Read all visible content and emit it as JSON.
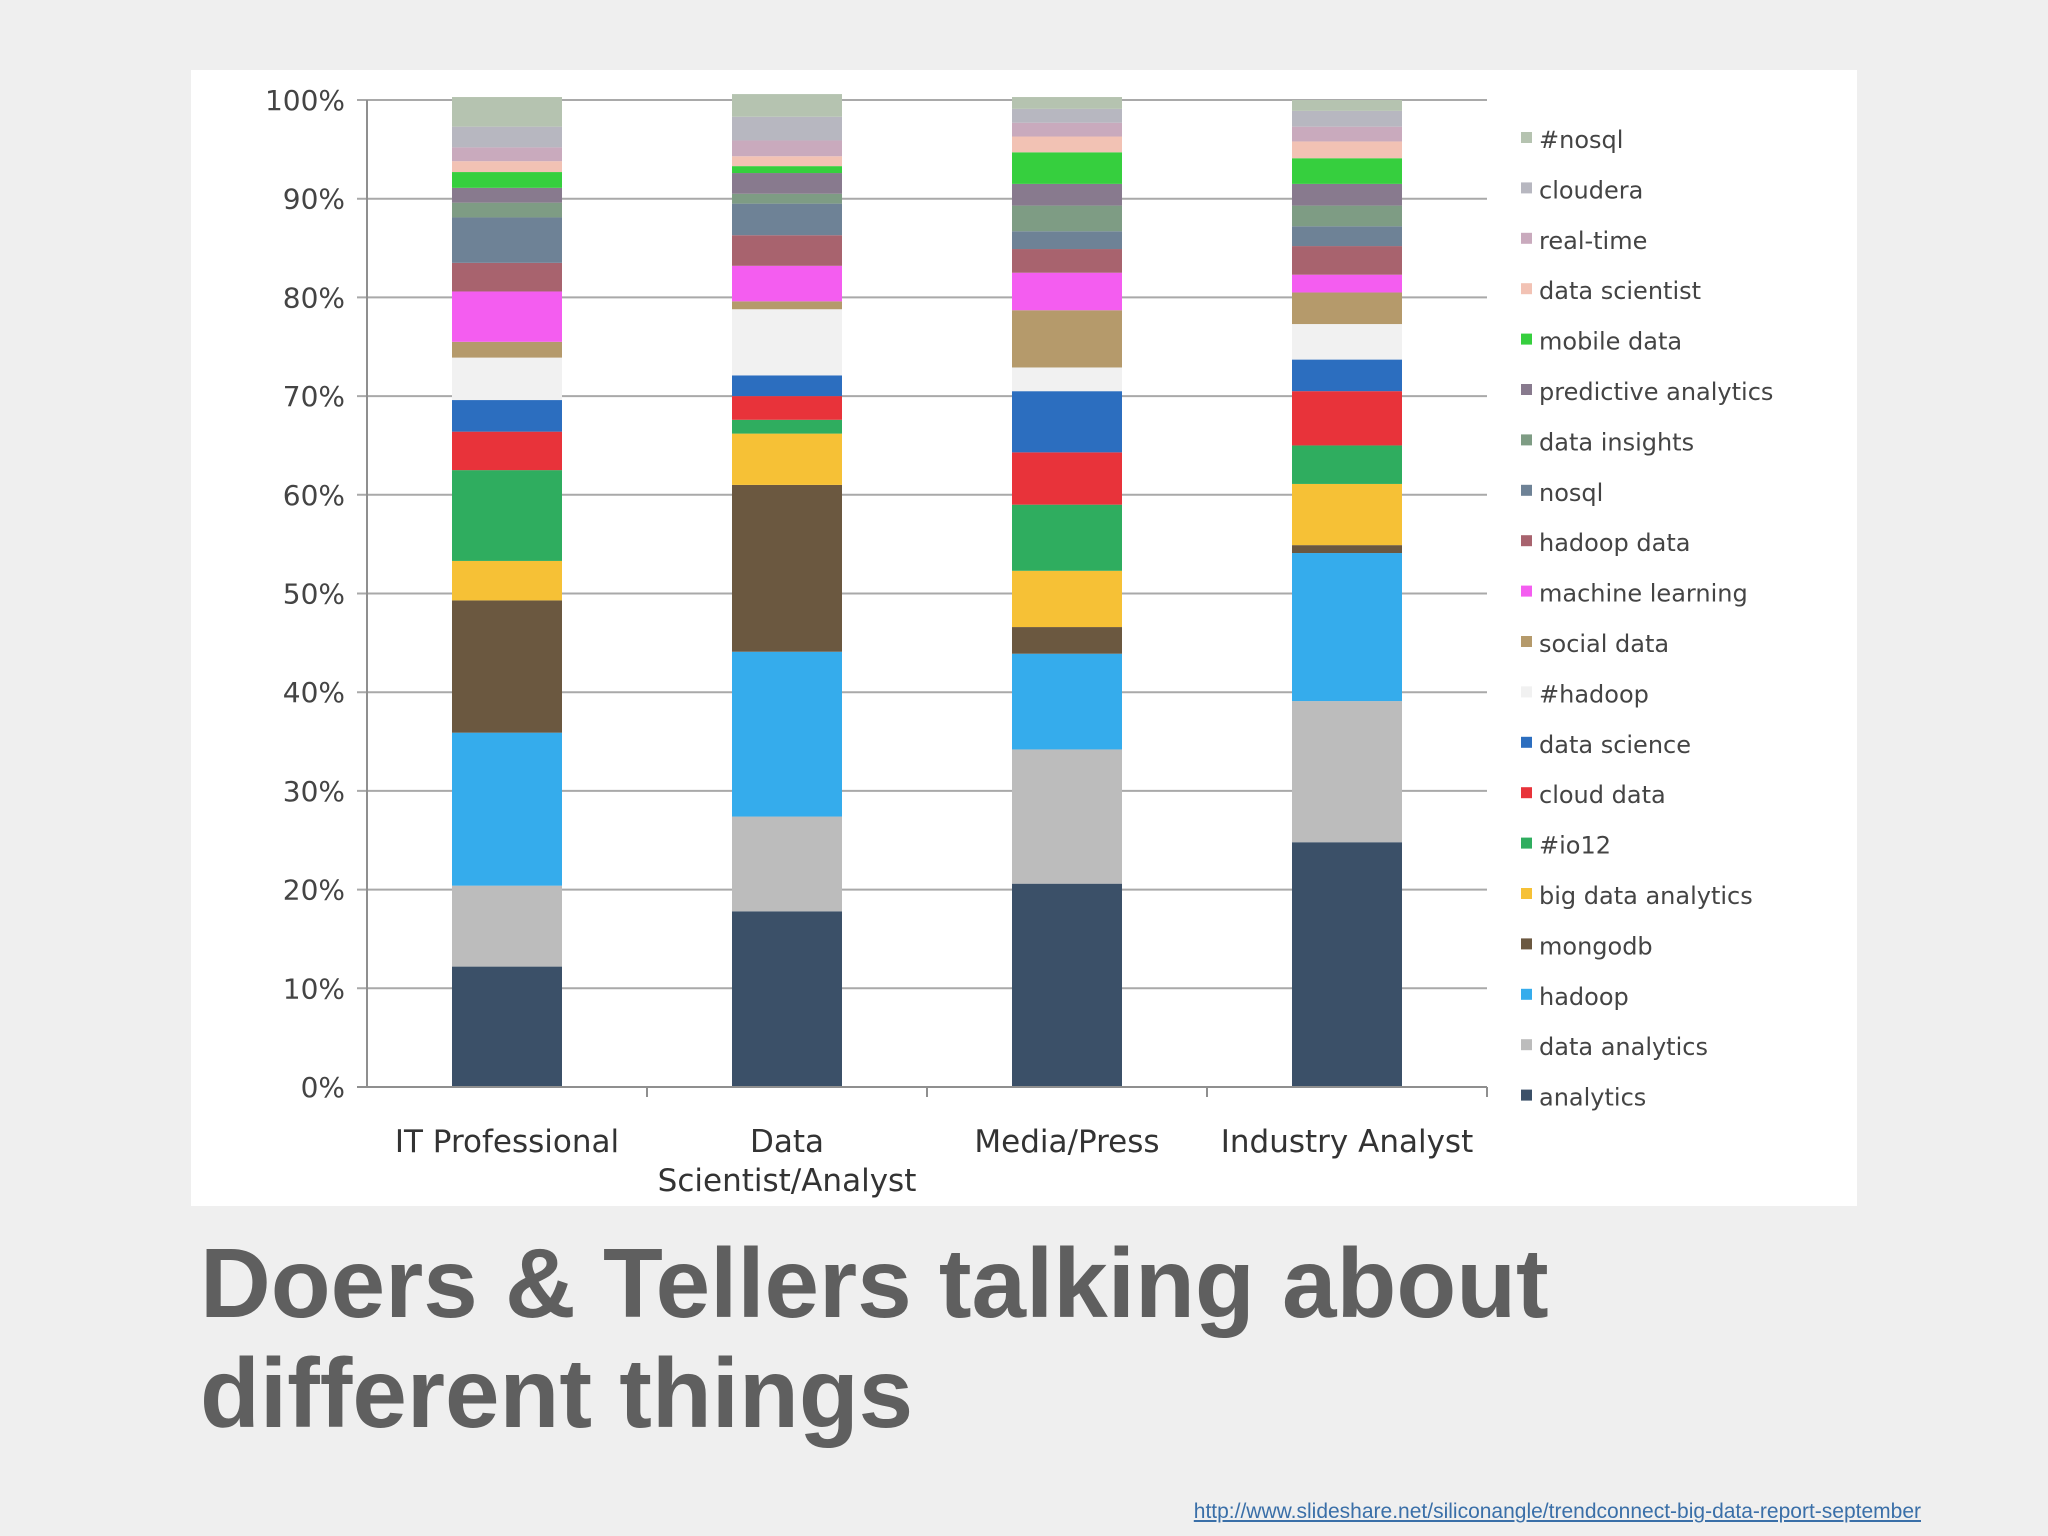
{
  "slide": {
    "title": "Doers & Tellers talking about different things",
    "source_link": "http://www.slideshare.net/siliconangle/trendconnect-big-data-report-september"
  },
  "chart_data": {
    "type": "bar",
    "stacked": true,
    "percent_axis": true,
    "title": "",
    "xlabel": "",
    "ylabel": "",
    "ylim": [
      0,
      100
    ],
    "y_ticks": [
      "0%",
      "10%",
      "20%",
      "30%",
      "40%",
      "50%",
      "60%",
      "70%",
      "80%",
      "90%",
      "100%"
    ],
    "categories": [
      "IT Professional",
      "Data Scientist/Analyst",
      "Media/Press",
      "Industry Analyst"
    ],
    "category_lines": [
      [
        "IT Professional"
      ],
      [
        "Data",
        "Scientist/Analyst"
      ],
      [
        "Media/Press"
      ],
      [
        "Industry Analyst"
      ]
    ],
    "legend_position": "right",
    "series": [
      {
        "name": "analytics",
        "color": "#3b5068",
        "values": [
          12.2,
          17.8,
          20.6,
          24.8
        ]
      },
      {
        "name": "data analytics",
        "color": "#bcbcbc",
        "values": [
          8.2,
          9.6,
          13.6,
          14.3
        ]
      },
      {
        "name": "hadoop",
        "color": "#35acec",
        "values": [
          15.5,
          16.7,
          9.7,
          15.0
        ]
      },
      {
        "name": "mongodb",
        "color": "#6b5840",
        "values": [
          13.4,
          16.9,
          2.7,
          0.8
        ]
      },
      {
        "name": "big data analytics",
        "color": "#f6c136",
        "values": [
          4.0,
          5.2,
          5.7,
          6.2
        ]
      },
      {
        "name": "#io12",
        "color": "#2fad5f",
        "values": [
          9.2,
          1.4,
          6.7,
          3.9
        ]
      },
      {
        "name": "cloud data",
        "color": "#e8333a",
        "values": [
          3.9,
          2.4,
          5.3,
          5.5
        ]
      },
      {
        "name": "data science",
        "color": "#2c6ebf",
        "values": [
          3.2,
          2.1,
          6.2,
          3.2
        ]
      },
      {
        "name": "#hadoop",
        "color": "#f1f1f1",
        "values": [
          4.3,
          6.7,
          2.4,
          3.6
        ]
      },
      {
        "name": "social data",
        "color": "#b59a6b",
        "values": [
          1.6,
          0.8,
          5.8,
          3.2
        ]
      },
      {
        "name": "machine learning",
        "color": "#f45df0",
        "values": [
          5.1,
          3.6,
          3.8,
          1.8
        ]
      },
      {
        "name": "hadoop data",
        "color": "#a8636e",
        "values": [
          2.9,
          3.1,
          2.4,
          2.9
        ]
      },
      {
        "name": "nosql",
        "color": "#6e8296",
        "values": [
          4.6,
          3.2,
          1.8,
          2.0
        ]
      },
      {
        "name": "data insights",
        "color": "#7e9c84",
        "values": [
          1.5,
          1.0,
          2.6,
          2.1
        ]
      },
      {
        "name": "predictive analytics",
        "color": "#887a8e",
        "values": [
          1.5,
          2.1,
          2.2,
          2.2
        ]
      },
      {
        "name": "mobile data",
        "color": "#36cf3e",
        "values": [
          1.6,
          0.7,
          3.2,
          2.6
        ]
      },
      {
        "name": "data scientist",
        "color": "#f2c2b4",
        "values": [
          1.1,
          1.0,
          1.6,
          1.7
        ]
      },
      {
        "name": "real-time",
        "color": "#c9aabd",
        "values": [
          1.4,
          1.6,
          1.4,
          1.5
        ]
      },
      {
        "name": "cloudera",
        "color": "#b7b7c0",
        "values": [
          2.1,
          2.4,
          1.4,
          1.6
        ]
      },
      {
        "name": "#nosql",
        "color": "#b5c3b0",
        "values": [
          3.0,
          2.3,
          1.2,
          1.1
        ]
      }
    ]
  }
}
